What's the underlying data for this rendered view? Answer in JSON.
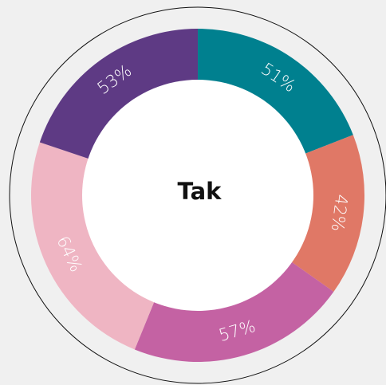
{
  "chart_data": {
    "type": "donut",
    "center_label": "Tak",
    "categories": [
      null,
      null,
      null,
      null,
      null
    ],
    "values": [
      51,
      42,
      57,
      64,
      53
    ],
    "value_labels": [
      "51%",
      "42%",
      "57%",
      "64%",
      "53%"
    ],
    "colors": [
      "#00808f",
      "#e07866",
      "#c462a3",
      "#efb5c3",
      "#5e3a84"
    ]
  }
}
